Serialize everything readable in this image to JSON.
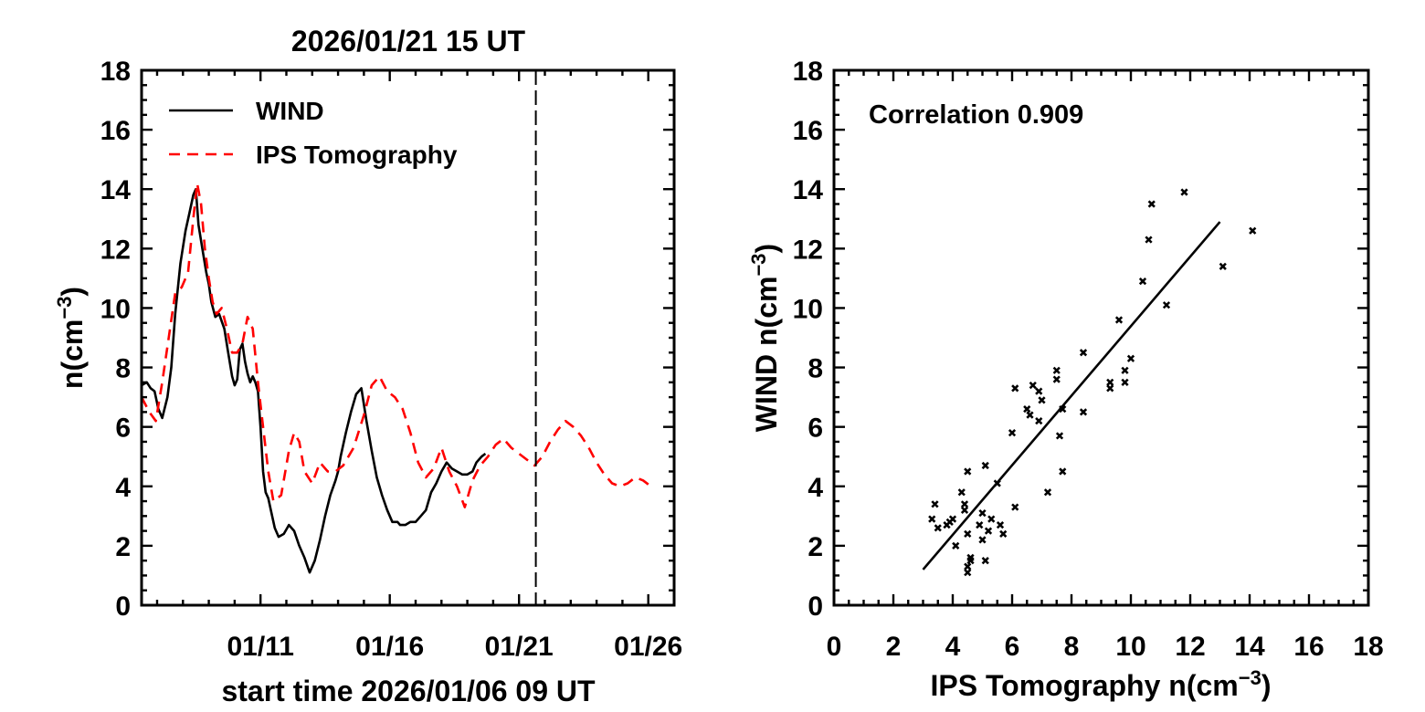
{
  "chart_data": [
    {
      "type": "line",
      "title": "2026/01/21 15 UT",
      "xlabel": "start time 2026/01/06 09 UT",
      "ylabel": "n(cm",
      "ylabel_sup": "−3",
      "ylabel_close": ")",
      "xlim": [
        0,
        20.6
      ],
      "ylim": [
        0,
        18
      ],
      "xticks": [
        {
          "x": 4.6,
          "label": "01/11"
        },
        {
          "x": 9.6,
          "label": "01/16"
        },
        {
          "x": 14.6,
          "label": "01/21"
        },
        {
          "x": 19.6,
          "label": "01/26"
        }
      ],
      "yticks": [
        0,
        2,
        4,
        6,
        8,
        10,
        12,
        14,
        16,
        18
      ],
      "current_time_x": 15.25,
      "legend": [
        {
          "name": "WIND",
          "style": "solid",
          "color": "#000000"
        },
        {
          "name": "IPS Tomography",
          "style": "dashed",
          "color": "#ff0000"
        }
      ],
      "series": [
        {
          "name": "WIND",
          "x": [
            0,
            0.2,
            0.35,
            0.5,
            0.65,
            0.8,
            1.0,
            1.15,
            1.3,
            1.5,
            1.7,
            1.85,
            2.0,
            2.1,
            2.2,
            2.35,
            2.5,
            2.6,
            2.7,
            2.85,
            3.0,
            3.2,
            3.35,
            3.5,
            3.6,
            3.7,
            3.8,
            3.9,
            4.0,
            4.1,
            4.2,
            4.3,
            4.4,
            4.5,
            4.6,
            4.7,
            4.8,
            4.9,
            5.0,
            5.15,
            5.3,
            5.5,
            5.7,
            5.9,
            6.1,
            6.3,
            6.5,
            6.7,
            6.9,
            7.1,
            7.3,
            7.5,
            7.6,
            7.7,
            7.9,
            8.1,
            8.3,
            8.5,
            8.7,
            8.9,
            9.1,
            9.3,
            9.5,
            9.7,
            9.9,
            10.0,
            10.2,
            10.4,
            10.6,
            10.8,
            11.0,
            11.2,
            11.4,
            11.6,
            11.8,
            12.0,
            12.2,
            12.4,
            12.6,
            12.8,
            12.95,
            13.05,
            13.15,
            13.3
          ],
          "values": [
            7.4,
            7.5,
            7.3,
            7.2,
            6.6,
            6.3,
            7.0,
            8.0,
            9.8,
            11.5,
            12.6,
            13.2,
            13.8,
            14.0,
            12.8,
            12.0,
            11.2,
            10.8,
            10.2,
            9.7,
            9.8,
            9.3,
            8.5,
            7.7,
            7.4,
            7.6,
            8.6,
            8.8,
            8.2,
            7.8,
            7.5,
            7.7,
            7.5,
            7.2,
            6.0,
            4.5,
            3.8,
            3.6,
            3.2,
            2.6,
            2.3,
            2.4,
            2.7,
            2.5,
            2.0,
            1.6,
            1.1,
            1.5,
            2.2,
            3.0,
            3.7,
            4.2,
            4.5,
            5.0,
            5.8,
            6.5,
            7.1,
            7.3,
            6.2,
            5.2,
            4.3,
            3.7,
            3.2,
            2.8,
            2.8,
            2.7,
            2.7,
            2.8,
            2.8,
            3.0,
            3.2,
            3.8,
            4.1,
            4.5,
            4.8,
            4.6,
            4.5,
            4.4,
            4.4,
            4.5,
            4.8,
            4.9,
            5.0,
            5.1
          ]
        },
        {
          "name": "IPS Tomography",
          "x": [
            0,
            0.3,
            0.55,
            0.8,
            1.05,
            1.3,
            1.55,
            1.8,
            2.0,
            2.15,
            2.3,
            2.45,
            2.6,
            2.75,
            2.9,
            3.1,
            3.3,
            3.5,
            3.7,
            3.9,
            4.1,
            4.3,
            4.5,
            4.7,
            4.9,
            5.1,
            5.4,
            5.7,
            5.9,
            6.1,
            6.3,
            6.6,
            6.9,
            7.2,
            7.5,
            7.8,
            8.2,
            8.6,
            8.9,
            9.2,
            9.5,
            9.8,
            10.1,
            10.4,
            10.7,
            11.0,
            11.3,
            11.6,
            11.9,
            12.2,
            12.5,
            12.8,
            13.1,
            13.4,
            13.7,
            14.0,
            14.3,
            14.6,
            14.9,
            15.2,
            15.5,
            15.8,
            16.1,
            16.4,
            16.7,
            17.0,
            17.3,
            17.6,
            17.9,
            18.2,
            18.5,
            18.8,
            19.1,
            19.4,
            19.7
          ],
          "values": [
            7.0,
            6.5,
            6.2,
            7.5,
            9.0,
            10.5,
            10.7,
            11.2,
            13.0,
            14.2,
            13.5,
            12.0,
            11.0,
            10.2,
            9.8,
            10.0,
            9.3,
            8.5,
            8.5,
            8.8,
            9.7,
            9.3,
            7.5,
            6.0,
            4.5,
            3.5,
            3.7,
            5.2,
            5.8,
            5.5,
            4.5,
            4.1,
            4.8,
            4.5,
            4.5,
            4.7,
            5.3,
            6.4,
            7.4,
            7.7,
            7.2,
            7.0,
            6.6,
            5.8,
            4.8,
            4.3,
            4.6,
            5.3,
            4.5,
            4.0,
            3.3,
            4.2,
            4.7,
            5.0,
            5.4,
            5.6,
            5.3,
            5.1,
            4.9,
            4.7,
            5.0,
            5.5,
            5.9,
            6.2,
            6.0,
            5.7,
            5.3,
            4.8,
            4.4,
            4.1,
            4.0,
            4.1,
            4.3,
            4.2,
            4.0
          ]
        }
      ]
    },
    {
      "type": "scatter",
      "title": "",
      "xlabel": "IPS Tomography  n(cm",
      "xlabel_sup": "−3",
      "xlabel_close": ")",
      "ylabel": "WIND   n(cm",
      "ylabel_sup": "−3",
      "ylabel_close": ")",
      "xlim": [
        0,
        18
      ],
      "ylim": [
        0,
        18
      ],
      "xticks": [
        0,
        2,
        4,
        6,
        8,
        10,
        12,
        14,
        16,
        18
      ],
      "yticks": [
        0,
        2,
        4,
        6,
        8,
        10,
        12,
        14,
        16,
        18
      ],
      "annotation": "Correlation 0.909",
      "fit_line": {
        "x": [
          3.0,
          13.0
        ],
        "y": [
          1.2,
          12.9
        ]
      },
      "points": [
        [
          3.4,
          3.4
        ],
        [
          3.3,
          2.9
        ],
        [
          3.5,
          2.6
        ],
        [
          3.8,
          2.7
        ],
        [
          3.9,
          2.8
        ],
        [
          4.0,
          2.9
        ],
        [
          4.1,
          2.0
        ],
        [
          4.3,
          3.8
        ],
        [
          4.4,
          3.2
        ],
        [
          4.4,
          3.4
        ],
        [
          4.5,
          2.4
        ],
        [
          4.5,
          4.5
        ],
        [
          4.5,
          1.1
        ],
        [
          4.5,
          1.3
        ],
        [
          4.6,
          1.6
        ],
        [
          4.6,
          1.5
        ],
        [
          4.9,
          2.7
        ],
        [
          5.0,
          2.2
        ],
        [
          5.0,
          3.1
        ],
        [
          5.1,
          1.5
        ],
        [
          5.1,
          4.7
        ],
        [
          5.2,
          2.5
        ],
        [
          5.3,
          2.9
        ],
        [
          5.5,
          4.1
        ],
        [
          5.6,
          2.7
        ],
        [
          5.7,
          2.4
        ],
        [
          6.0,
          5.8
        ],
        [
          6.1,
          7.3
        ],
        [
          6.1,
          3.3
        ],
        [
          6.5,
          6.6
        ],
        [
          6.6,
          6.4
        ],
        [
          6.7,
          7.4
        ],
        [
          6.9,
          7.2
        ],
        [
          6.9,
          6.2
        ],
        [
          7.0,
          6.9
        ],
        [
          7.2,
          3.8
        ],
        [
          7.5,
          7.9
        ],
        [
          7.5,
          7.6
        ],
        [
          7.6,
          5.7
        ],
        [
          7.7,
          4.5
        ],
        [
          7.7,
          6.6
        ],
        [
          8.4,
          8.5
        ],
        [
          8.4,
          6.5
        ],
        [
          9.3,
          7.3
        ],
        [
          9.3,
          7.5
        ],
        [
          9.6,
          9.6
        ],
        [
          9.8,
          7.5
        ],
        [
          9.8,
          7.9
        ],
        [
          10.0,
          8.3
        ],
        [
          10.4,
          10.9
        ],
        [
          10.6,
          12.3
        ],
        [
          10.7,
          13.5
        ],
        [
          11.2,
          10.1
        ],
        [
          11.8,
          13.9
        ],
        [
          13.1,
          11.4
        ],
        [
          14.1,
          12.6
        ]
      ]
    }
  ]
}
